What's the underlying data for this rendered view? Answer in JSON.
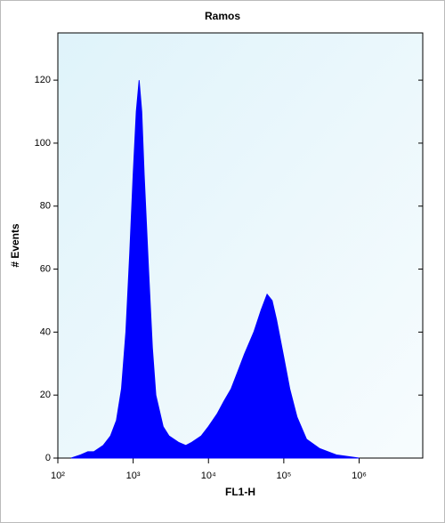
{
  "chart_data": {
    "type": "area",
    "title": "Ramos",
    "x_label": "FL1-H",
    "y_label": "# Events",
    "color": "#0000ff",
    "xscale": "log",
    "x": [
      150,
      200,
      250,
      300,
      400,
      500,
      600,
      700,
      800,
      900,
      1000,
      1100,
      1200,
      1300,
      1400,
      1600,
      1800,
      2000,
      2500,
      3000,
      4000,
      5000,
      6000,
      8000,
      10000,
      13000,
      16000,
      20000,
      25000,
      30000,
      40000,
      50000,
      60000,
      70000,
      80000,
      100000,
      120000,
      150000,
      200000,
      300000,
      500000,
      1000000
    ],
    "values": [
      0,
      1,
      2,
      2,
      4,
      7,
      12,
      22,
      40,
      65,
      90,
      110,
      120,
      110,
      90,
      60,
      35,
      20,
      10,
      7,
      5,
      4,
      5,
      7,
      10,
      14,
      18,
      22,
      28,
      33,
      40,
      47,
      52,
      50,
      44,
      32,
      22,
      13,
      6,
      3,
      1,
      0
    ],
    "xlim": [
      100,
      7000000
    ],
    "ylim": [
      0,
      135
    ],
    "xticks": [
      {
        "value": 100,
        "label": "10²"
      },
      {
        "value": 1000,
        "label": "10³"
      },
      {
        "value": 10000,
        "label": "10⁴"
      },
      {
        "value": 100000,
        "label": "10⁵"
      },
      {
        "value": 1000000,
        "label": "10⁶"
      }
    ],
    "yticks": [
      0,
      20,
      40,
      60,
      80,
      100,
      120
    ]
  }
}
